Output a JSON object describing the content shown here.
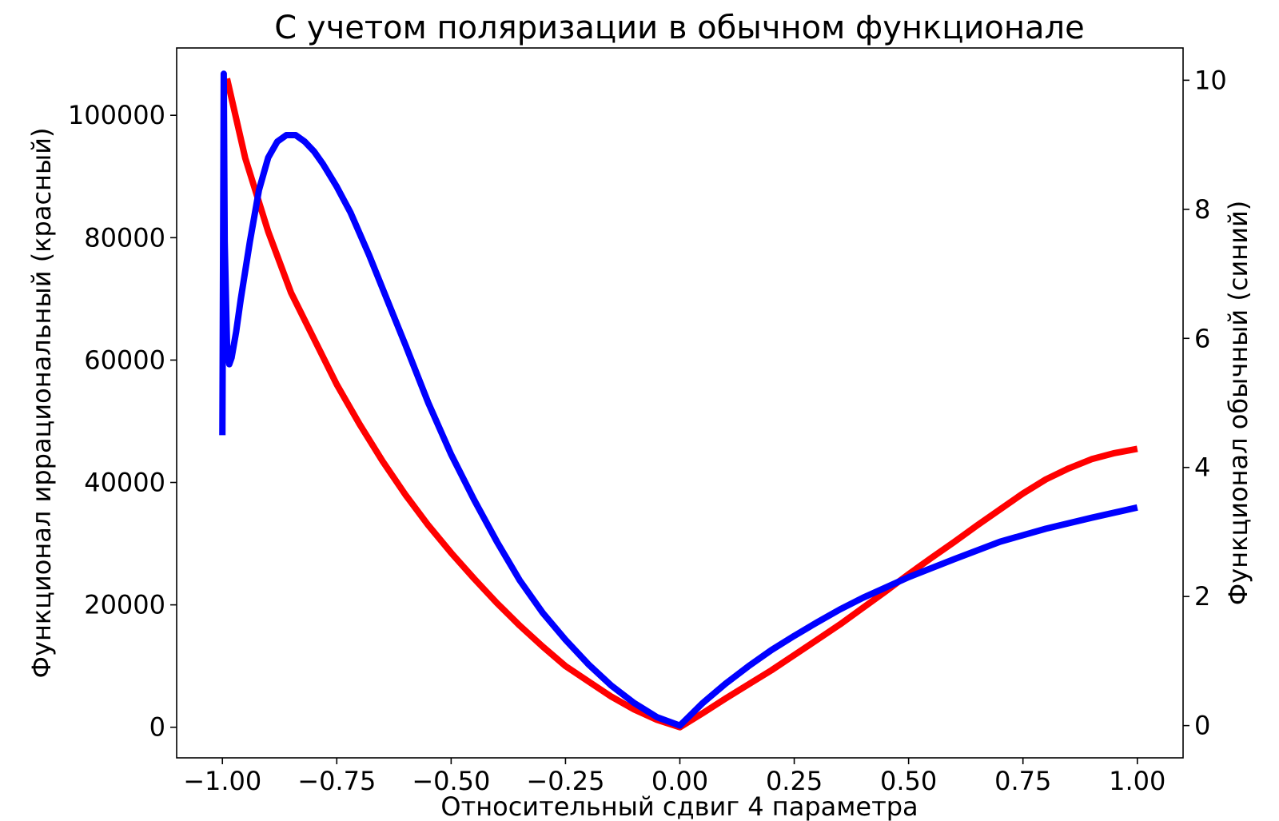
{
  "chart_data": {
    "type": "line",
    "title": "С учетом поляризации в обычном функционале",
    "xlabel": "Относительный сдвиг 4 параметра",
    "ylabel_left": "Функционал иррациональный (красный)",
    "ylabel_right": "Функционал обычный (синий)",
    "xlim": [
      -1.1,
      1.1
    ],
    "ylim_left": [
      -5000,
      111000
    ],
    "ylim_right": [
      -0.5,
      10.5
    ],
    "xticks": [
      -1.0,
      -0.75,
      -0.5,
      -0.25,
      0.0,
      0.25,
      0.5,
      0.75,
      1.0
    ],
    "xtick_labels": [
      "−1.00",
      "−0.75",
      "−0.50",
      "−0.25",
      "0.00",
      "0.25",
      "0.50",
      "0.75",
      "1.00"
    ],
    "yticks_left": [
      0,
      20000,
      40000,
      60000,
      80000,
      100000
    ],
    "ytick_labels_left": [
      "0",
      "20000",
      "40000",
      "60000",
      "80000",
      "100000"
    ],
    "yticks_right": [
      0,
      2,
      4,
      6,
      8,
      10
    ],
    "ytick_labels_right": [
      "0",
      "2",
      "4",
      "6",
      "8",
      "10"
    ],
    "grid": false,
    "series": [
      {
        "color": "#ff0000",
        "axis": "left",
        "x": [
          -0.99,
          -0.95,
          -0.9,
          -0.85,
          -0.8,
          -0.75,
          -0.7,
          -0.65,
          -0.6,
          -0.55,
          -0.5,
          -0.45,
          -0.4,
          -0.35,
          -0.3,
          -0.25,
          -0.2,
          -0.15,
          -0.1,
          -0.05,
          0.0,
          0.05,
          0.1,
          0.15,
          0.2,
          0.25,
          0.3,
          0.35,
          0.4,
          0.45,
          0.5,
          0.55,
          0.6,
          0.65,
          0.7,
          0.75,
          0.8,
          0.85,
          0.9,
          0.95,
          1.0
        ],
        "y": [
          106000,
          93000,
          81000,
          71000,
          63500,
          56000,
          49500,
          43500,
          38000,
          33000,
          28500,
          24300,
          20300,
          16600,
          13200,
          10000,
          7500,
          5000,
          2900,
          1200,
          0,
          2300,
          4700,
          7000,
          9300,
          11800,
          14300,
          16800,
          19500,
          22200,
          25000,
          27700,
          30300,
          33000,
          35600,
          38200,
          40500,
          42300,
          43800,
          44800,
          45500
        ]
      },
      {
        "color": "#0000ff",
        "axis": "right",
        "x": [
          -1.0,
          -0.997,
          -0.995,
          -0.99,
          -0.985,
          -0.98,
          -0.97,
          -0.96,
          -0.94,
          -0.92,
          -0.9,
          -0.88,
          -0.86,
          -0.84,
          -0.82,
          -0.8,
          -0.78,
          -0.75,
          -0.72,
          -0.68,
          -0.64,
          -0.6,
          -0.55,
          -0.5,
          -0.45,
          -0.4,
          -0.35,
          -0.3,
          -0.25,
          -0.2,
          -0.15,
          -0.1,
          -0.05,
          0.0,
          0.05,
          0.1,
          0.15,
          0.2,
          0.25,
          0.3,
          0.35,
          0.4,
          0.5,
          0.6,
          0.7,
          0.8,
          0.9,
          1.0
        ],
        "y": [
          4.5,
          10.1,
          7.5,
          5.9,
          5.6,
          5.7,
          6.1,
          6.6,
          7.5,
          8.3,
          8.8,
          9.05,
          9.15,
          9.15,
          9.05,
          8.9,
          8.7,
          8.35,
          7.95,
          7.3,
          6.6,
          5.9,
          5.0,
          4.2,
          3.5,
          2.85,
          2.25,
          1.75,
          1.33,
          0.95,
          0.62,
          0.35,
          0.13,
          0.0,
          0.35,
          0.65,
          0.92,
          1.17,
          1.39,
          1.6,
          1.8,
          1.98,
          2.3,
          2.58,
          2.85,
          3.05,
          3.22,
          3.38
        ]
      }
    ]
  }
}
